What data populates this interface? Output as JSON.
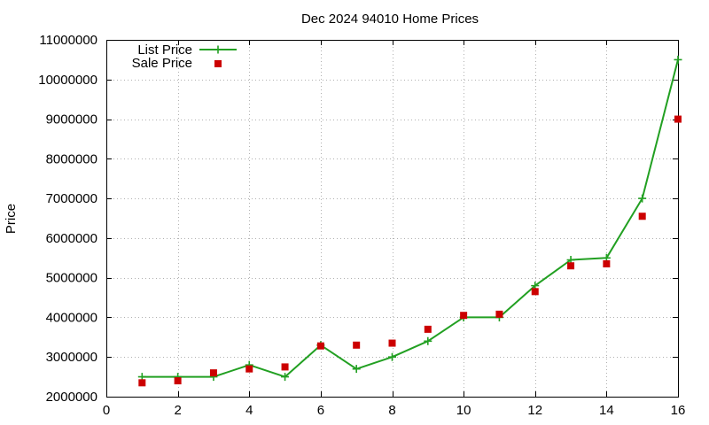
{
  "chart_data": {
    "type": "line",
    "title": "Dec 2024 94010 Home Prices",
    "xlabel": "",
    "ylabel": "Price",
    "xlim": [
      0,
      16
    ],
    "ylim": [
      2000000,
      11000000
    ],
    "xticks": [
      "0",
      "2",
      "4",
      "6",
      "8",
      "10",
      "12",
      "14",
      "16"
    ],
    "yticks": [
      "2000000",
      "3000000",
      "4000000",
      "5000000",
      "6000000",
      "7000000",
      "8000000",
      "9000000",
      "10000000",
      "11000000"
    ],
    "grid": true,
    "legend_position": "top-left",
    "x": [
      1,
      2,
      3,
      4,
      5,
      6,
      7,
      8,
      9,
      10,
      11,
      12,
      13,
      14,
      15,
      16
    ],
    "series": [
      {
        "name": "List Price",
        "style": "linespoints",
        "marker": "plus",
        "color": "#22a022",
        "values": [
          2500000,
          2500000,
          2500000,
          2800000,
          2500000,
          3300000,
          2700000,
          3000000,
          3400000,
          4000000,
          4000000,
          4800000,
          5450000,
          5500000,
          7000000,
          10500000
        ]
      },
      {
        "name": "Sale Price",
        "style": "points",
        "marker": "square",
        "color": "#cc0000",
        "values": [
          2350000,
          2400000,
          2600000,
          2700000,
          2750000,
          3280000,
          3300000,
          3350000,
          3700000,
          4050000,
          4080000,
          4650000,
          5300000,
          5350000,
          6550000,
          9000000
        ]
      }
    ]
  }
}
